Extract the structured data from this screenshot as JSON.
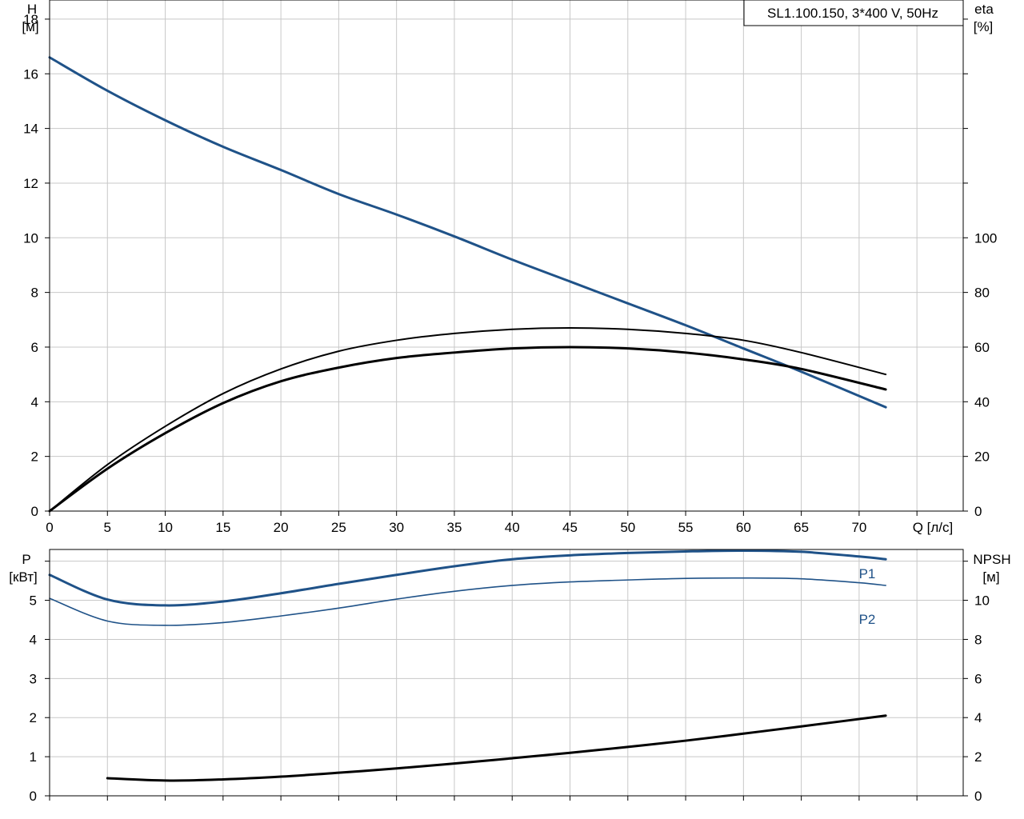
{
  "title": "SL1.100.150, 3*400 V, 50Hz",
  "colors": {
    "blue": "#1f5288",
    "black": "#000000"
  },
  "chart_data": [
    {
      "type": "line",
      "name": "head-efficiency",
      "xlabel": "Q [л/с]",
      "ylabel_left": [
        "H",
        "[м]"
      ],
      "ylabel_right": [
        "eta",
        "[%]"
      ],
      "xlim": [
        0,
        79
      ],
      "ylim_left": [
        0,
        18.7
      ],
      "ylim_right_scale": "eta = H * 10",
      "x_ticks": [
        "0",
        "5",
        "10",
        "15",
        "20",
        "25",
        "30",
        "35",
        "40",
        "45",
        "50",
        "55",
        "60",
        "65",
        "70"
      ],
      "y_ticks_left": [
        "0",
        "2",
        "4",
        "6",
        "8",
        "10",
        "12",
        "14",
        "16",
        "18"
      ],
      "y_ticks_right": [
        "0",
        "20",
        "40",
        "60",
        "80",
        "100"
      ],
      "grid": true,
      "series": [
        {
          "id": "H",
          "color": "#1f5288",
          "width": 3,
          "axis": "left",
          "x": [
            0,
            5,
            10,
            15,
            20,
            25,
            30,
            35,
            40,
            45,
            50,
            55,
            60,
            65,
            72.3
          ],
          "y": [
            16.6,
            15.38,
            14.3,
            13.33,
            12.48,
            11.6,
            10.85,
            10.05,
            9.2,
            8.4,
            7.6,
            6.8,
            5.95,
            5.1,
            3.8
          ]
        },
        {
          "id": "eta-thin",
          "color": "#000000",
          "width": 2,
          "axis": "right",
          "x": [
            0,
            5,
            10,
            15,
            20,
            25,
            30,
            35,
            40,
            45,
            50,
            55,
            60,
            65,
            72.3
          ],
          "y": [
            0,
            17,
            31,
            43,
            52,
            58.5,
            62.5,
            65,
            66.5,
            67,
            66.5,
            65,
            62.5,
            58,
            50
          ]
        },
        {
          "id": "eta-thick",
          "color": "#000000",
          "width": 3,
          "axis": "right",
          "x": [
            0,
            5,
            10,
            15,
            20,
            25,
            30,
            35,
            40,
            45,
            50,
            55,
            60,
            65,
            72.3
          ],
          "y": [
            0,
            15.5,
            28.5,
            39.5,
            47.5,
            52.5,
            56,
            58,
            59.5,
            60,
            59.5,
            58,
            55.5,
            52,
            44.5
          ]
        }
      ]
    },
    {
      "type": "line",
      "name": "power-npsh",
      "ylabel_left": [
        "P",
        "[кВт]"
      ],
      "ylabel_right": [
        "NPSH",
        "[м]"
      ],
      "xlim": [
        0,
        79
      ],
      "ylim_left": [
        0,
        6.3
      ],
      "ylim_right_scale": "NPSH = P * 2",
      "y_ticks_left": [
        "0",
        "1",
        "2",
        "3",
        "4",
        "5"
      ],
      "y_ticks_right": [
        "0",
        "2",
        "4",
        "6",
        "8",
        "10"
      ],
      "grid": true,
      "series": [
        {
          "id": "P1",
          "name": "P1",
          "color": "#1f5288",
          "width": 3,
          "axis": "left",
          "x": [
            0,
            5,
            10,
            15,
            20,
            25,
            30,
            35,
            40,
            45,
            50,
            55,
            60,
            65,
            70,
            72.3
          ],
          "y": [
            5.65,
            5.02,
            4.87,
            4.97,
            5.18,
            5.42,
            5.65,
            5.87,
            6.05,
            6.15,
            6.21,
            6.25,
            6.27,
            6.24,
            6.12,
            6.05
          ]
        },
        {
          "id": "P2",
          "name": "P2",
          "color": "#1f5288",
          "width": 1.6,
          "axis": "left",
          "x": [
            0,
            5,
            10,
            15,
            20,
            25,
            30,
            35,
            40,
            45,
            50,
            55,
            60,
            65,
            70,
            72.3
          ],
          "y": [
            5.05,
            4.47,
            4.36,
            4.43,
            4.6,
            4.8,
            5.03,
            5.23,
            5.38,
            5.47,
            5.52,
            5.56,
            5.57,
            5.55,
            5.45,
            5.38
          ]
        },
        {
          "id": "NPSH",
          "color": "#000000",
          "width": 3,
          "axis": "right",
          "x": [
            5,
            10,
            15,
            20,
            25,
            30,
            35,
            40,
            45,
            50,
            55,
            60,
            65,
            72.3
          ],
          "y": [
            0.9,
            0.78,
            0.84,
            0.98,
            1.18,
            1.4,
            1.65,
            1.92,
            2.2,
            2.5,
            2.82,
            3.18,
            3.55,
            4.1
          ]
        }
      ]
    }
  ]
}
